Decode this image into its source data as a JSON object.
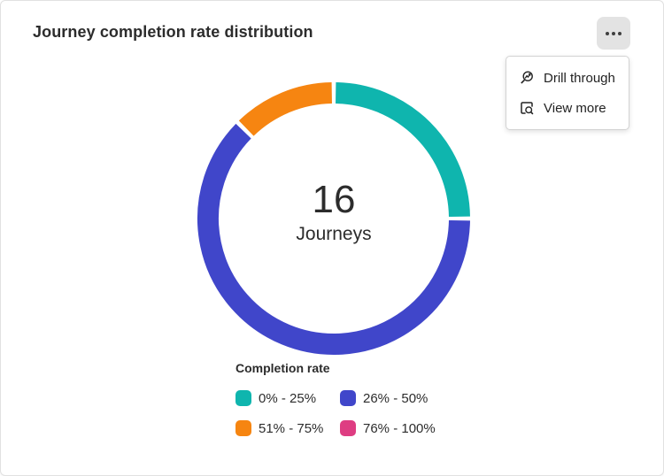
{
  "card": {
    "title": "Journey completion rate distribution"
  },
  "menu": {
    "button_icon": "ellipsis-icon",
    "items": [
      {
        "icon": "drill-through-icon",
        "label": "Drill through"
      },
      {
        "icon": "view-more-icon",
        "label": "View more"
      }
    ]
  },
  "chart_data": {
    "type": "pie",
    "subtype": "donut",
    "title": "Journey completion rate distribution",
    "center_value": "16",
    "center_label": "Journeys",
    "total": 16,
    "legend_title": "Completion rate",
    "legend_position": "bottom",
    "start_angle_deg": 0,
    "direction": "clockwise",
    "segments": [
      {
        "label": "0% - 25%",
        "value": 4,
        "color": "#0FB5AE"
      },
      {
        "label": "26% - 50%",
        "value": 10,
        "color": "#4046CA"
      },
      {
        "label": "51% - 75%",
        "value": 2,
        "color": "#F68511"
      },
      {
        "label": "76% - 100%",
        "value": 0,
        "color": "#DE3D82"
      }
    ]
  }
}
